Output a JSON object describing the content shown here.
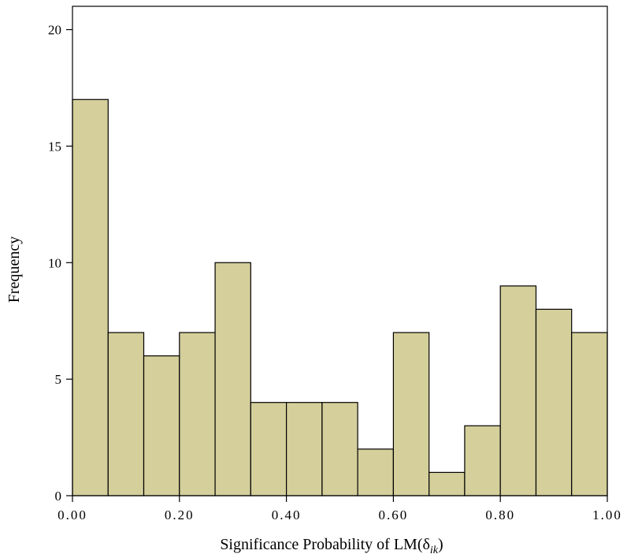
{
  "chart_data": {
    "type": "bar",
    "title": "",
    "xlabel_main": "Significance Probability of LM(δ",
    "xlabel_sub": "ik",
    "xlabel_close": ")",
    "ylabel": "Frequency",
    "bar_color": "#d4cf9b",
    "xlim": [
      0,
      1
    ],
    "ylim": [
      0,
      21
    ],
    "x_ticks": [
      0.0,
      0.2,
      0.4,
      0.6,
      0.8,
      1.0
    ],
    "x_tick_labels": [
      "0.00",
      "0.20",
      "0.40",
      "0.60",
      "0.80",
      "1.00"
    ],
    "y_ticks": [
      0,
      5,
      10,
      15,
      20
    ],
    "y_tick_labels": [
      "0",
      "5",
      "10",
      "15",
      "20"
    ],
    "bin_width": 0.0667,
    "bin_starts": [
      0.0,
      0.0667,
      0.1333,
      0.2,
      0.2667,
      0.3333,
      0.4,
      0.4667,
      0.5333,
      0.6,
      0.6667,
      0.7333,
      0.8,
      0.8667,
      0.9333
    ],
    "values": [
      17,
      7,
      6,
      7,
      10,
      4,
      4,
      4,
      2,
      7,
      1,
      3,
      9,
      8,
      7
    ],
    "grid": false,
    "legend": "none"
  }
}
